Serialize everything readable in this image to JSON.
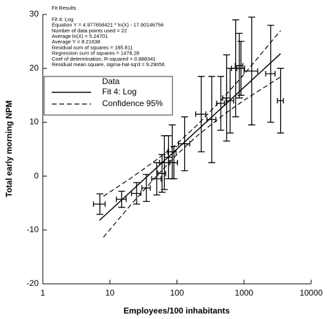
{
  "chart_data": {
    "type": "errorbar",
    "xlabel": "Employees/100 inhabitants",
    "ylabel": "Total early morning NPM",
    "xscale": "log",
    "xlim": [
      1,
      10000
    ],
    "xticks": [
      1,
      10,
      100,
      1000,
      10000
    ],
    "ylim": [
      -20,
      30
    ],
    "yticks": [
      -20,
      -10,
      0,
      10,
      20,
      30
    ],
    "annotations": [
      "Fit Results",
      "Fit 4: Log",
      "Equation Y = 4.977658421 * ln(X) - 17.90146756",
      "Number of data points used = 22",
      "Average ln(X) = 5.24701",
      "Average Y = 8.21638",
      "Residual sum of squares = 185.811",
      "Regression sum of squares = 1478.28",
      "Coef of determination, R-squared = 0.888341",
      "Residual mean square, sigma-hat-sq'd = 9.29056"
    ],
    "legend_title": "Data",
    "data": {
      "color": "#000000",
      "x": [
        7.1,
        15,
        25,
        35,
        50,
        60,
        65,
        75,
        85,
        90,
        130,
        230,
        330,
        450,
        550,
        620,
        750,
        850,
        900,
        1300,
        2500,
        3500
      ],
      "xerr": [
        1.4,
        2.5,
        4,
        5,
        8,
        8,
        10,
        10,
        12,
        12,
        25,
        40,
        50,
        60,
        70,
        80,
        100,
        110,
        120,
        300,
        400,
        350
      ],
      "values": [
        -5.2,
        -4.3,
        -3.2,
        -2.2,
        -0.5,
        0.5,
        2.5,
        3.5,
        4.5,
        2.5,
        6,
        11.5,
        10.5,
        13.5,
        14.5,
        14,
        20,
        20.5,
        20,
        19.5,
        19,
        14
      ],
      "yerr": [
        1.9,
        1.5,
        2,
        2.5,
        3,
        3.5,
        5,
        4,
        5,
        3,
        5,
        7,
        8,
        5,
        8,
        6,
        9,
        6,
        5,
        10,
        9,
        6
      ]
    },
    "fit": {
      "name": "Fit 4: Log",
      "color": "#000000",
      "x": [
        7,
        3500
      ],
      "values": [
        -8.22,
        22.72
      ]
    },
    "confidence": {
      "name": "Confidence 95%",
      "color": "#000000",
      "x": [
        8,
        20,
        50,
        100,
        200,
        500,
        1000,
        3500
      ],
      "upper": [
        -3.75,
        -0.49,
        3.07,
        6.02,
        9.47,
        14.63,
        18.88,
        27.0
      ],
      "lower": [
        -11.35,
        -5.49,
        0.07,
        4.02,
        7.47,
        11.43,
        14.08,
        18.4
      ]
    }
  }
}
